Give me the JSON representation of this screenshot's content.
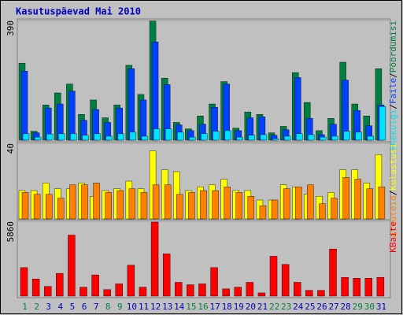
{
  "chart_data": [
    {
      "type": "bar",
      "title": "Kasutuspäevad Mai 2010",
      "legend_separator": "/",
      "ylim": [
        0,
        390
      ],
      "yticks": [
        390
      ],
      "series": [
        {
          "name": "Pöördumisi",
          "color": "#008040",
          "values": [
            251,
            29,
            115,
            154,
            183,
            84,
            131,
            73,
            115,
            244,
            149,
            388,
            202,
            58,
            37,
            79,
            118,
            191,
            39,
            92,
            84,
            24,
            45,
            220,
            123,
            31,
            71,
            254,
            118,
            79,
            233
          ]
        },
        {
          "name": "Faile",
          "color": "#0040ff",
          "values": [
            225,
            24,
            105,
            118,
            160,
            65,
            100,
            58,
            105,
            233,
            131,
            320,
            181,
            50,
            31,
            52,
            107,
            183,
            31,
            73,
            76,
            16,
            34,
            204,
            71,
            18,
            52,
            196,
            97,
            47,
            115
          ]
        },
        {
          "name": "Lehekülgi",
          "color": "#00e0ff",
          "values": [
            21,
            10,
            20,
            21,
            21,
            16,
            21,
            13,
            21,
            26,
            13,
            37,
            37,
            26,
            10,
            21,
            29,
            31,
            10,
            16,
            18,
            5,
            13,
            21,
            18,
            10,
            13,
            29,
            26,
            13,
            110
          ]
        }
      ]
    },
    {
      "type": "bar",
      "legend_separator": "/",
      "ylim": [
        0,
        40
      ],
      "yticks": [
        40
      ],
      "series": [
        {
          "name": "Külastusi",
          "color": "#ffff00",
          "values": [
            15,
            15,
            19,
            16,
            16,
            19,
            12,
            15,
            16,
            20,
            16,
            36,
            26,
            25,
            15,
            17,
            18,
            21,
            15,
            15,
            10,
            10,
            18,
            17,
            13,
            12,
            14,
            26,
            26,
            19,
            34
          ]
        },
        {
          "name": "Arvuteid",
          "color": "#ff8000",
          "values": [
            14,
            13,
            13,
            11,
            18,
            18,
            19,
            14,
            15,
            16,
            14,
            18,
            18,
            13,
            14,
            15,
            15,
            17,
            14,
            12,
            7,
            10,
            16,
            17,
            18,
            8,
            11,
            22,
            21,
            16,
            17
          ]
        }
      ]
    },
    {
      "type": "bar",
      "ylim": [
        0,
        5860
      ],
      "yticks": [
        5860
      ],
      "categories": [
        "1",
        "2",
        "3",
        "4",
        "5",
        "6",
        "7",
        "8",
        "9",
        "10",
        "11",
        "12",
        "13",
        "14",
        "15",
        "16",
        "17",
        "18",
        "19",
        "20",
        "21",
        "22",
        "23",
        "24",
        "25",
        "26",
        "27",
        "28",
        "29",
        "30",
        "31"
      ],
      "category_label_colors": [
        "#008040",
        "#008040",
        "#0000c0",
        "#0000c0",
        "#0000c0",
        "#0000c0",
        "#0000c0",
        "#008040",
        "#008040",
        "#0000c0",
        "#0000c0",
        "#0000c0",
        "#0000c0",
        "#0000c0",
        "#008040",
        "#008040",
        "#0000c0",
        "#0000c0",
        "#0000c0",
        "#0000c0",
        "#0000c0",
        "#008040",
        "#008040",
        "#0000c0",
        "#0000c0",
        "#0000c0",
        "#0000c0",
        "#0000c0",
        "#008040",
        "#008040",
        "#0000c0"
      ],
      "series": [
        {
          "name": "KBaite",
          "color": "#ff0000",
          "values": [
            2230,
            1340,
            760,
            1780,
            4780,
            700,
            1660,
            510,
            960,
            2420,
            700,
            5800,
            3310,
            1080,
            890,
            960,
            2230,
            570,
            700,
            1080,
            250,
            3120,
            2480,
            1080,
            450,
            450,
            3690,
            1470,
            1400,
            1400,
            1470
          ]
        }
      ]
    }
  ]
}
